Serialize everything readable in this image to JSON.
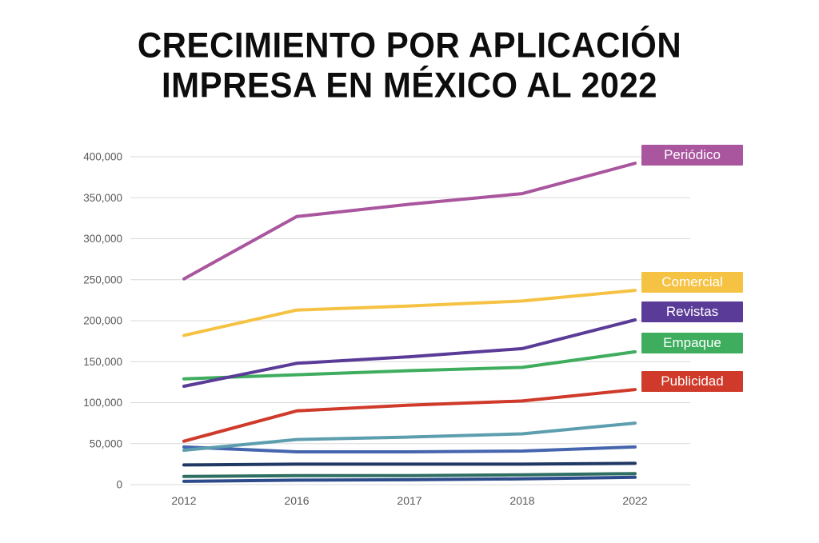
{
  "title": {
    "line1": "CRECIMIENTO POR APLICACIÓN",
    "line2": "IMPRESA EN MÉXICO AL 2022"
  },
  "chart_data": {
    "type": "line",
    "title": "CRECIMIENTO POR APLICACIÓN IMPRESA EN MÉXICO AL 2022",
    "x_labels": [
      "2012",
      "2016",
      "2017",
      "2018",
      "2022"
    ],
    "y_min": 0,
    "y_max": 400000,
    "y_step": 50000,
    "y_tick_labels": [
      "0",
      "50,000",
      "100,000",
      "150,000",
      "200,000",
      "250,000",
      "300,000",
      "350,000",
      "400,000"
    ],
    "grid": true,
    "gridline_color": "#d9d9d9",
    "tick_label_color": "#595959",
    "legend_position": "right-overlay",
    "series": [
      {
        "name": "Periódico",
        "labeled": true,
        "color": "#a9569f",
        "values": [
          251000,
          327000,
          342000,
          355000,
          392000
        ]
      },
      {
        "name": "Comercial",
        "labeled": true,
        "color": "#f6c244",
        "values": [
          182000,
          213000,
          218000,
          224000,
          237000
        ]
      },
      {
        "name": "Revistas",
        "labeled": true,
        "color": "#5a3b97",
        "values": [
          120000,
          148000,
          156000,
          166000,
          201000
        ]
      },
      {
        "name": "Empaque",
        "labeled": true,
        "color": "#3fad5e",
        "values": [
          129000,
          134000,
          139000,
          143000,
          162000
        ]
      },
      {
        "name": "Publicidad",
        "labeled": true,
        "color": "#cf3a2a",
        "values": [
          53000,
          90000,
          97000,
          102000,
          116000
        ]
      },
      {
        "name": "",
        "labeled": false,
        "color": "#5d9eae",
        "values": [
          42000,
          55000,
          58000,
          62000,
          75000
        ]
      },
      {
        "name": "",
        "labeled": false,
        "color": "#4565ae",
        "values": [
          46000,
          40000,
          40000,
          41000,
          46000
        ]
      },
      {
        "name": "",
        "labeled": false,
        "color": "#1f3864",
        "values": [
          24000,
          25000,
          25000,
          25000,
          26000
        ]
      },
      {
        "name": "",
        "labeled": false,
        "color": "#2f6e63",
        "values": [
          10000,
          11000,
          11000,
          12000,
          13500
        ]
      },
      {
        "name": "",
        "labeled": false,
        "color": "#2d4b8b",
        "values": [
          4000,
          5500,
          6000,
          7000,
          9000
        ]
      }
    ]
  }
}
